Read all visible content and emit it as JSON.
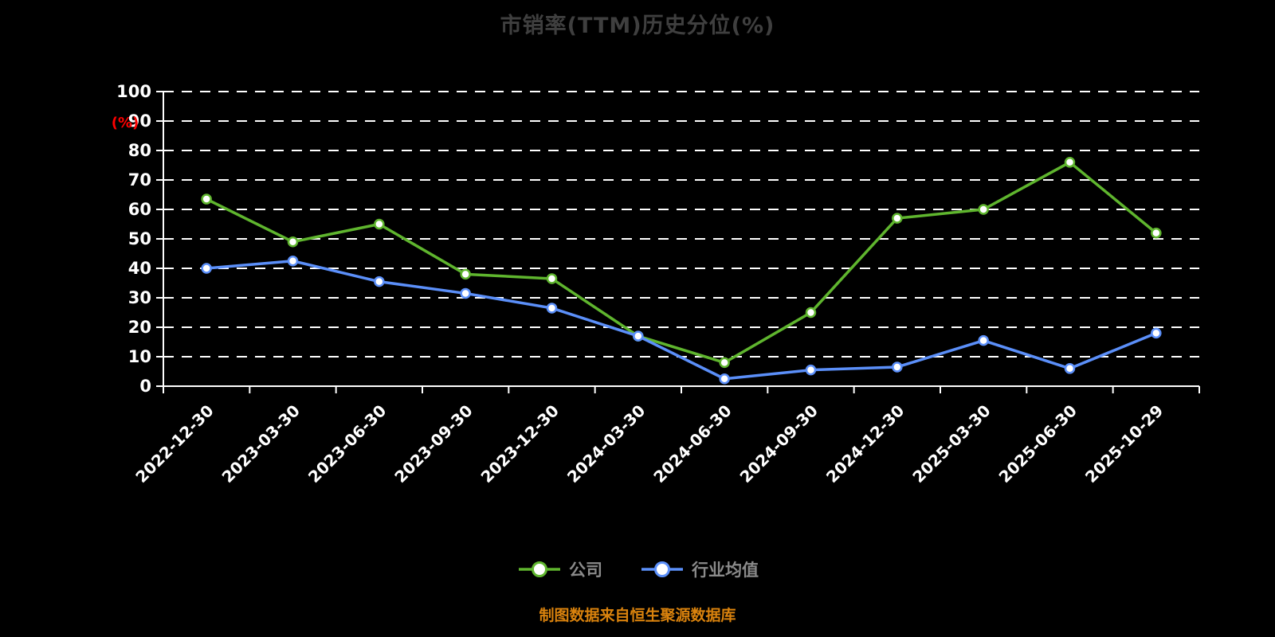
{
  "title": "市销率(TTM)历史分位(%)",
  "source_note": "制图数据来自恒生聚源数据库",
  "colors": {
    "background": "#000000",
    "title_text": "#3f3f3f",
    "axis_text": "#ffffff",
    "axis_line": "#ffffff",
    "gridline": "#ffffff",
    "ylabel_text": "#ff0000",
    "legend_text": "#8a8a8a",
    "source_text": "#d9820d",
    "company_series": "#5fb52e",
    "industry_series": "#5b8ff9",
    "marker_fill": "#ffffff"
  },
  "legend": [
    {
      "label": "公司",
      "color": "#5fb52e"
    },
    {
      "label": "行业均值",
      "color": "#5b8ff9"
    }
  ],
  "chart_data": {
    "type": "line",
    "title": "市销率(TTM)历史分位(%)",
    "xlabel": "",
    "ylabel": "(%)",
    "ylim": [
      0,
      100
    ],
    "yticks": [
      0,
      10,
      20,
      30,
      40,
      50,
      60,
      70,
      80,
      90,
      100
    ],
    "grid": "horizontal-dashed",
    "legend_position": "bottom",
    "categories": [
      "2022-12-30",
      "2023-03-30",
      "2023-06-30",
      "2023-09-30",
      "2023-12-30",
      "2024-03-30",
      "2024-06-30",
      "2024-09-30",
      "2024-12-30",
      "2025-03-30",
      "2025-06-30",
      "2025-10-29"
    ],
    "series": [
      {
        "name": "公司",
        "color": "#5fb52e",
        "values": [
          63.5,
          49,
          55,
          38,
          36.5,
          17,
          8,
          25,
          57,
          60,
          76,
          52
        ]
      },
      {
        "name": "行业均值",
        "color": "#5b8ff9",
        "values": [
          40,
          42.5,
          35.5,
          31.5,
          26.5,
          17,
          2.5,
          5.5,
          6.5,
          15.5,
          6,
          18
        ]
      }
    ]
  }
}
